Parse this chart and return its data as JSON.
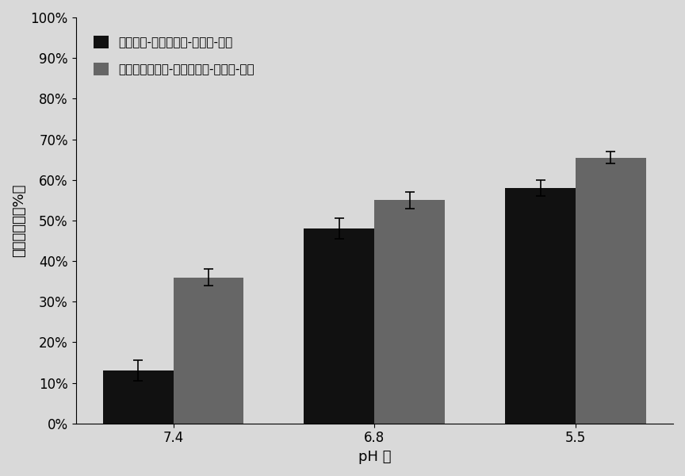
{
  "categories": [
    "7.4",
    "6.8",
    "5.5"
  ],
  "series": [
    {
      "label": "柠康酸酐-二代赖氨酸-谷氨酸-油胺",
      "values": [
        0.13,
        0.48,
        0.58
      ],
      "errors": [
        0.025,
        0.025,
        0.02
      ],
      "color": "#111111"
    },
    {
      "label": "二甲基马来酸酐-二代赖氨酸-谷氨酸-油胺",
      "values": [
        0.36,
        0.55,
        0.655
      ],
      "errors": [
        0.02,
        0.02,
        0.015
      ],
      "color": "#666666"
    }
  ],
  "xlabel": "pH 值",
  "ylabel": "氨基暴露率（%）",
  "ylim": [
    0,
    1.0
  ],
  "yticks": [
    0.0,
    0.1,
    0.2,
    0.3,
    0.4,
    0.5,
    0.6,
    0.7,
    0.8,
    0.9,
    1.0
  ],
  "ytick_labels": [
    "0%",
    "10%",
    "20%",
    "30%",
    "40%",
    "50%",
    "60%",
    "70%",
    "80%",
    "90%",
    "100%"
  ],
  "background_color": "#d9d9d9",
  "bar_width": 0.35,
  "legend_fontsize": 11,
  "axis_fontsize": 13,
  "tick_fontsize": 12
}
